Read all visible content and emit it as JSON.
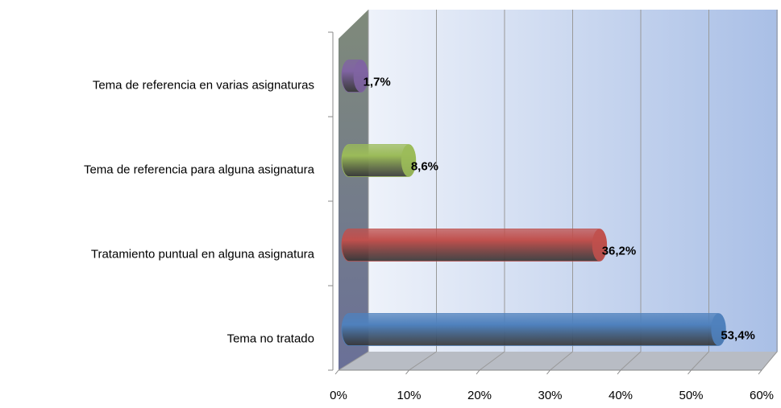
{
  "chart_data": {
    "type": "bar3d_horizontal",
    "categories": [
      "Tema de referencia en varias asignaturas",
      "Tema de referencia para alguna asignatura",
      "Tratamiento puntual en alguna asignatura",
      "Tema no tratado"
    ],
    "values": [
      1.7,
      8.6,
      36.2,
      53.4
    ],
    "value_labels": [
      "1,7%",
      "8,6%",
      "36,2%",
      "53,4%"
    ],
    "colors": [
      "#8064a2",
      "#9bbb59",
      "#c0504d",
      "#4f81bd"
    ],
    "xlim": [
      0,
      60
    ],
    "xticks": [
      {
        "value": 0,
        "label": "0%"
      },
      {
        "value": 10,
        "label": "10%"
      },
      {
        "value": 20,
        "label": "20%"
      },
      {
        "value": 30,
        "label": "30%"
      },
      {
        "value": 40,
        "label": "40%"
      },
      {
        "value": 50,
        "label": "50%"
      },
      {
        "value": 60,
        "label": "60%"
      }
    ],
    "grid": true
  }
}
